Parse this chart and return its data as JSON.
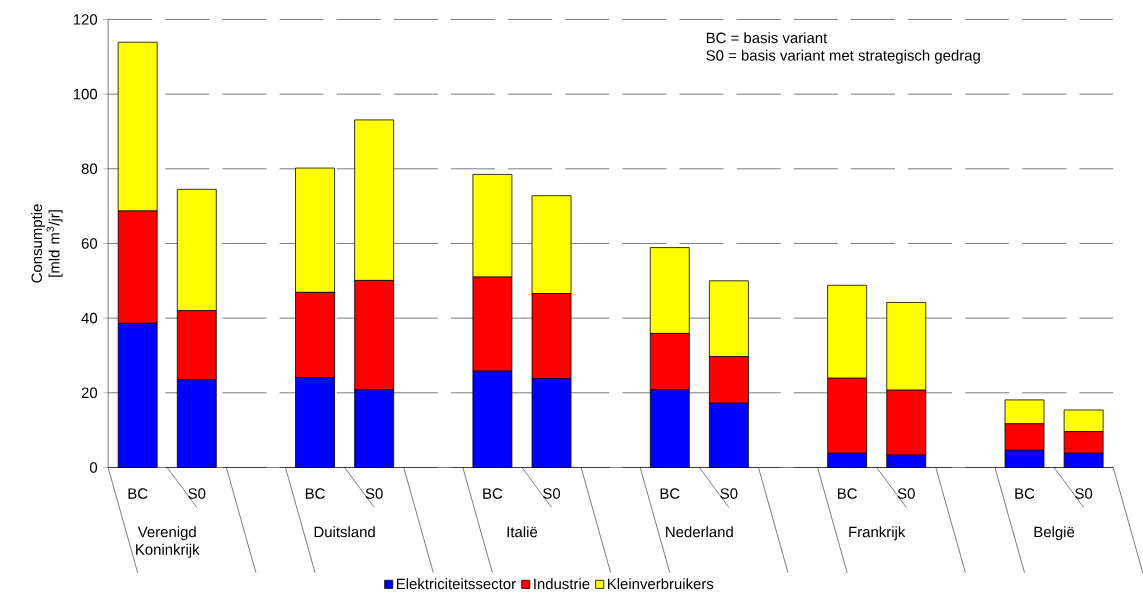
{
  "chart_data": {
    "type": "bar",
    "stacked": true,
    "ylabel": "Consumptie [mld m$^{3}$/jr]",
    "categories": [
      "BC",
      "S0",
      null,
      "BC",
      "S0",
      null,
      "BC",
      "S0",
      null,
      "BC",
      "S0",
      null,
      "BC",
      "S0",
      null,
      "BC",
      "S0"
    ],
    "series": [
      {
        "name": "Elektriciteitssector",
        "color": "#0000ff",
        "values": [
          38.6,
          23.5,
          null,
          24.1,
          20.8,
          null,
          25.8,
          23.8,
          null,
          20.8,
          17.2,
          null,
          3.8,
          3.3,
          null,
          4.6,
          3.8
        ]
      },
      {
        "name": "Industrie",
        "color": "#ff0000",
        "values": [
          30.1,
          18.5,
          null,
          22.8,
          29.3,
          null,
          25.2,
          22.8,
          null,
          15.1,
          12.5,
          null,
          20.1,
          17.4,
          null,
          7.1,
          5.8
        ]
      },
      {
        "name": "Kleinverbruikers",
        "color": "#ffff00",
        "values": [
          45.2,
          32.5,
          null,
          33.3,
          43.0,
          null,
          27.5,
          26.2,
          null,
          23.0,
          20.3,
          null,
          24.9,
          23.5,
          null,
          6.4,
          5.8
        ]
      }
    ],
    "ylim": [
      0,
      120
    ],
    "yticks": [
      0,
      20,
      40,
      60,
      80,
      100,
      120
    ],
    "grid": "y",
    "legend": "bottom",
    "annotations": [
      "BC = basis variant",
      "S0 = basis variant met strategisch gedrag",
      "Verenigd Koninkrijk",
      "Duitsland",
      "Italië",
      "Nederland",
      "Frankrijk",
      "België"
    ]
  }
}
